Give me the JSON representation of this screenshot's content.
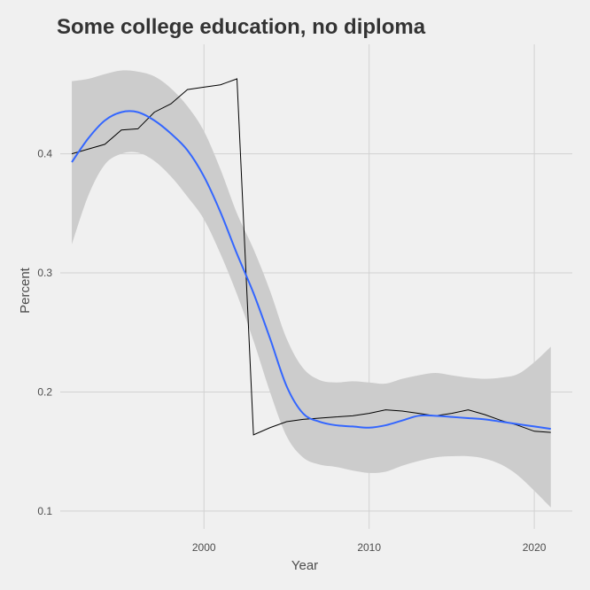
{
  "chart_data": {
    "type": "line",
    "title": "Some college education, no diploma",
    "xlabel": "Year",
    "ylabel": "Percent",
    "xlim": [
      1991.3,
      2022.3
    ],
    "ylim": [
      0.085,
      0.492
    ],
    "x_ticks": [
      2000,
      2010,
      2020
    ],
    "y_ticks": [
      0.1,
      0.2,
      0.3,
      0.4
    ],
    "x_tick_labels": [
      "2000",
      "2010",
      "2020"
    ],
    "y_tick_labels": [
      "0.1",
      "0.2",
      "0.3",
      "0.4"
    ],
    "grid": true,
    "legend": "none",
    "colors": {
      "raw": "#000000",
      "smooth": "#3366ff",
      "band": "#cccccc",
      "background": "#f0f0f0",
      "grid": "#d2d2d2"
    },
    "series": [
      {
        "kind": "raw",
        "x": [
          1992,
          1993,
          1994,
          1995,
          1996,
          1997,
          1998,
          1999,
          2000,
          2001,
          2002,
          2003,
          2004,
          2005,
          2006,
          2007,
          2008,
          2009,
          2010,
          2011,
          2012,
          2013,
          2014,
          2015,
          2016,
          2017,
          2018,
          2019,
          2020,
          2021
        ],
        "y": [
          0.4,
          0.404,
          0.408,
          0.42,
          0.421,
          0.435,
          0.442,
          0.454,
          0.456,
          0.458,
          0.463,
          0.164,
          0.17,
          0.175,
          0.177,
          0.178,
          0.179,
          0.18,
          0.182,
          0.185,
          0.184,
          0.182,
          0.18,
          0.182,
          0.185,
          0.181,
          0.176,
          0.172,
          0.167,
          0.166
        ]
      },
      {
        "kind": "smooth",
        "x": [
          1992,
          1993,
          1994,
          1995,
          1996,
          1997,
          1998,
          1999,
          2000,
          2001,
          2002,
          2003,
          2004,
          2005,
          2006,
          2007,
          2008,
          2009,
          2010,
          2011,
          2012,
          2013,
          2014,
          2015,
          2016,
          2017,
          2018,
          2019,
          2020,
          2021
        ],
        "y": [
          0.393,
          0.413,
          0.428,
          0.435,
          0.435,
          0.428,
          0.417,
          0.403,
          0.381,
          0.351,
          0.316,
          0.283,
          0.245,
          0.205,
          0.182,
          0.175,
          0.172,
          0.171,
          0.17,
          0.172,
          0.176,
          0.18,
          0.18,
          0.179,
          0.178,
          0.177,
          0.175,
          0.173,
          0.171,
          0.169
        ],
        "lower": [
          0.324,
          0.365,
          0.391,
          0.4,
          0.401,
          0.394,
          0.381,
          0.364,
          0.345,
          0.316,
          0.282,
          0.243,
          0.2,
          0.163,
          0.145,
          0.139,
          0.137,
          0.134,
          0.132,
          0.133,
          0.138,
          0.142,
          0.145,
          0.146,
          0.146,
          0.144,
          0.139,
          0.13,
          0.117,
          0.103
        ],
        "upper": [
          0.461,
          0.463,
          0.467,
          0.47,
          0.469,
          0.465,
          0.455,
          0.44,
          0.419,
          0.387,
          0.35,
          0.32,
          0.285,
          0.245,
          0.22,
          0.21,
          0.208,
          0.209,
          0.208,
          0.207,
          0.211,
          0.214,
          0.216,
          0.214,
          0.212,
          0.211,
          0.212,
          0.215,
          0.225,
          0.238
        ]
      }
    ]
  }
}
